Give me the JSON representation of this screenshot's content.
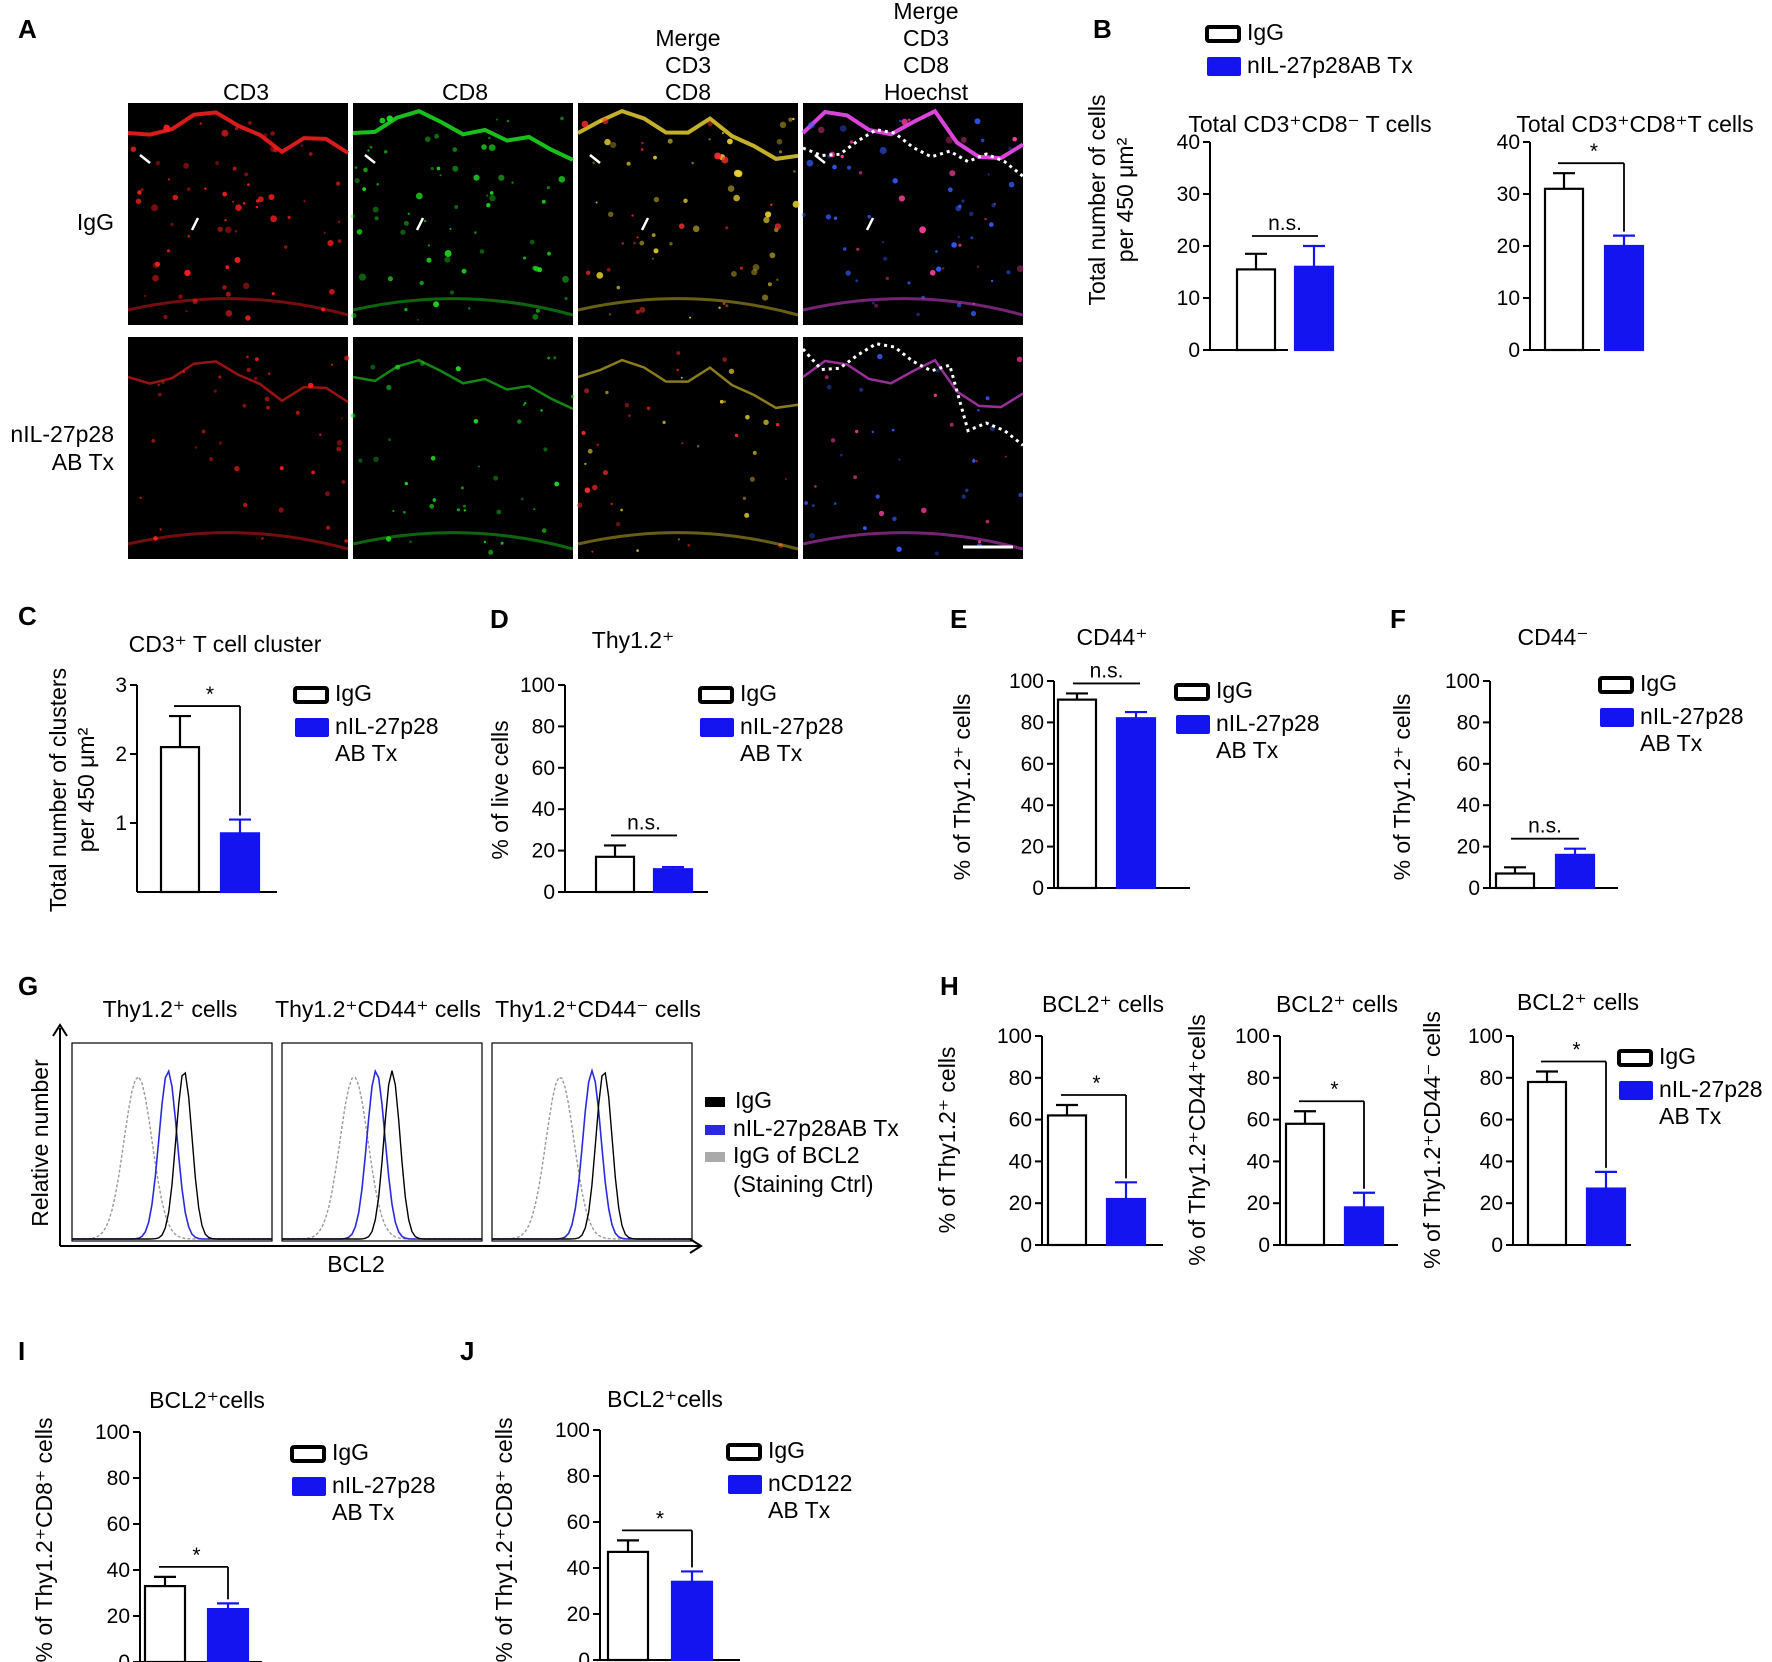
{
  "colors": {
    "igg": "#ffffff",
    "treated": "#1414f0",
    "axis": "#000000",
    "cd3_channel": "#ff2020",
    "cd8_channel": "#20e020",
    "hoechst_channel": "#3050ff",
    "merge_channel": "#e8d030",
    "hist_igg": "#000000",
    "hist_treated": "#2a2adc",
    "hist_ctrl": "#999999"
  },
  "panels": {
    "A": {
      "letter": "A",
      "col_headers": [
        "CD3",
        "CD8",
        "Merge\nCD3\nCD8",
        "Merge\nCD3\nCD8\nHoechst"
      ],
      "row_labels": [
        "IgG",
        "nIL-27p28\nAB Tx"
      ]
    },
    "B": {
      "letter": "B"
    },
    "C": {
      "letter": "C"
    },
    "D": {
      "letter": "D"
    },
    "E": {
      "letter": "E"
    },
    "F": {
      "letter": "F"
    },
    "G": {
      "letter": "G",
      "subtitles": [
        "Thy1.2⁺ cells",
        "Thy1.2⁺CD44⁺ cells",
        "Thy1.2⁺CD44⁻ cells"
      ],
      "ylabel": "Relative number",
      "xlabel": "BCL2",
      "legend": [
        "IgG",
        "nIL-27p28AB Tx",
        "IgG of BCL2\n(Staining Ctrl)"
      ]
    },
    "H": {
      "letter": "H"
    },
    "I": {
      "letter": "I"
    },
    "J": {
      "letter": "J"
    }
  },
  "chart_data": [
    {
      "id": "B1",
      "type": "bar",
      "title": "Total CD3⁺CD8⁻ T cells",
      "ylabel": "Total number of cells\nper 450 μm²",
      "categories": [
        "IgG",
        "nIL-27p28AB Tx"
      ],
      "values": [
        15.5,
        16
      ],
      "errors": [
        3,
        4
      ],
      "ylim": [
        0,
        40
      ],
      "yticks": [
        0,
        10,
        20,
        30,
        40
      ],
      "significance": "n.s.",
      "legend": [
        "IgG",
        "nIL-27p28AB Tx"
      ],
      "legend_placement": "top-left"
    },
    {
      "id": "B2",
      "type": "bar",
      "title": "Total CD3⁺CD8⁺T cells",
      "ylabel": "",
      "categories": [
        "IgG",
        "nIL-27p28AB Tx"
      ],
      "values": [
        31,
        20
      ],
      "errors": [
        3,
        2
      ],
      "ylim": [
        0,
        40
      ],
      "yticks": [
        0,
        10,
        20,
        30,
        40
      ],
      "significance": "*"
    },
    {
      "id": "C",
      "type": "bar",
      "title": "CD3⁺ T cell cluster",
      "ylabel": "Total number of clusters\nper 450 μm²",
      "categories": [
        "IgG",
        "nIL-27p28 AB Tx"
      ],
      "values": [
        2.1,
        0.85
      ],
      "errors": [
        0.45,
        0.2
      ],
      "ylim": [
        0,
        3
      ],
      "yticks": [
        1,
        2,
        3
      ],
      "significance": "*",
      "legend": [
        "IgG",
        "nIL-27p28\nAB Tx"
      ]
    },
    {
      "id": "D",
      "type": "bar",
      "title": "Thy1.2⁺",
      "ylabel": "% of live cells",
      "categories": [
        "IgG",
        "nIL-27p28 AB Tx"
      ],
      "values": [
        17,
        11
      ],
      "errors": [
        5.5,
        1
      ],
      "ylim": [
        0,
        100
      ],
      "yticks": [
        0,
        20,
        40,
        60,
        80,
        100
      ],
      "significance": "n.s.",
      "legend": [
        "IgG",
        "nIL-27p28\nAB Tx"
      ]
    },
    {
      "id": "E",
      "type": "bar",
      "title": "CD44⁺",
      "ylabel": "% of Thy1.2⁺ cells",
      "categories": [
        "IgG",
        "nIL-27p28 AB Tx"
      ],
      "values": [
        91,
        82
      ],
      "errors": [
        3,
        3
      ],
      "ylim": [
        0,
        100
      ],
      "yticks": [
        0,
        20,
        40,
        60,
        80,
        100
      ],
      "significance": "n.s.",
      "legend": [
        "IgG",
        "nIL-27p28\nAB Tx"
      ]
    },
    {
      "id": "F",
      "type": "bar",
      "title": "CD44⁻",
      "ylabel": "% of Thy1.2⁺ cells",
      "categories": [
        "IgG",
        "nIL-27p28 AB Tx"
      ],
      "values": [
        7,
        16
      ],
      "errors": [
        3,
        3
      ],
      "ylim": [
        0,
        100
      ],
      "yticks": [
        0,
        20,
        40,
        60,
        80,
        100
      ],
      "significance": "n.s.",
      "legend": [
        "IgG",
        "nIL-27p28\nAB Tx"
      ]
    },
    {
      "id": "H1",
      "type": "bar",
      "title": "BCL2⁺ cells",
      "ylabel": "% of Thy1.2⁺ cells",
      "categories": [
        "IgG",
        "nIL-27p28 AB Tx"
      ],
      "values": [
        62,
        22
      ],
      "errors": [
        5,
        8
      ],
      "ylim": [
        0,
        100
      ],
      "yticks": [
        0,
        20,
        40,
        60,
        80,
        100
      ],
      "significance": "*"
    },
    {
      "id": "H2",
      "type": "bar",
      "title": "BCL2⁺ cells",
      "ylabel": "% of Thy1.2⁺CD44⁺cells",
      "categories": [
        "IgG",
        "nIL-27p28 AB Tx"
      ],
      "values": [
        58,
        18
      ],
      "errors": [
        6,
        7
      ],
      "ylim": [
        0,
        100
      ],
      "yticks": [
        0,
        20,
        40,
        60,
        80,
        100
      ],
      "significance": "*"
    },
    {
      "id": "H3",
      "type": "bar",
      "title": "BCL2⁺ cells",
      "ylabel": "% of Thy1.2⁺CD44⁻ cells",
      "categories": [
        "IgG",
        "nIL-27p28 AB Tx"
      ],
      "values": [
        78,
        27
      ],
      "errors": [
        5,
        8
      ],
      "ylim": [
        0,
        100
      ],
      "yticks": [
        0,
        20,
        40,
        60,
        80,
        100
      ],
      "significance": "*",
      "legend": [
        "IgG",
        "nIL-27p28\nAB Tx"
      ]
    },
    {
      "id": "I",
      "type": "bar",
      "title": "BCL2⁺cells",
      "ylabel": "% of Thy1.2⁺CD8⁺ cells",
      "categories": [
        "IgG",
        "nIL-27p28 AB Tx"
      ],
      "values": [
        33,
        23
      ],
      "errors": [
        4,
        2.5
      ],
      "ylim": [
        0,
        100
      ],
      "yticks": [
        0,
        20,
        40,
        60,
        80,
        100
      ],
      "significance": "*",
      "legend": [
        "IgG",
        "nIL-27p28\nAB Tx"
      ]
    },
    {
      "id": "J",
      "type": "bar",
      "title": "BCL2⁺cells",
      "ylabel": "% of Thy1.2⁺CD8⁺ cells",
      "categories": [
        "IgG",
        "nCD122 AB Tx"
      ],
      "values": [
        47,
        34
      ],
      "errors": [
        5,
        4.5
      ],
      "ylim": [
        0,
        100
      ],
      "yticks": [
        0,
        20,
        40,
        60,
        80,
        100
      ],
      "significance": "*",
      "legend": [
        "IgG",
        "nCD122\nAB Tx"
      ]
    }
  ]
}
